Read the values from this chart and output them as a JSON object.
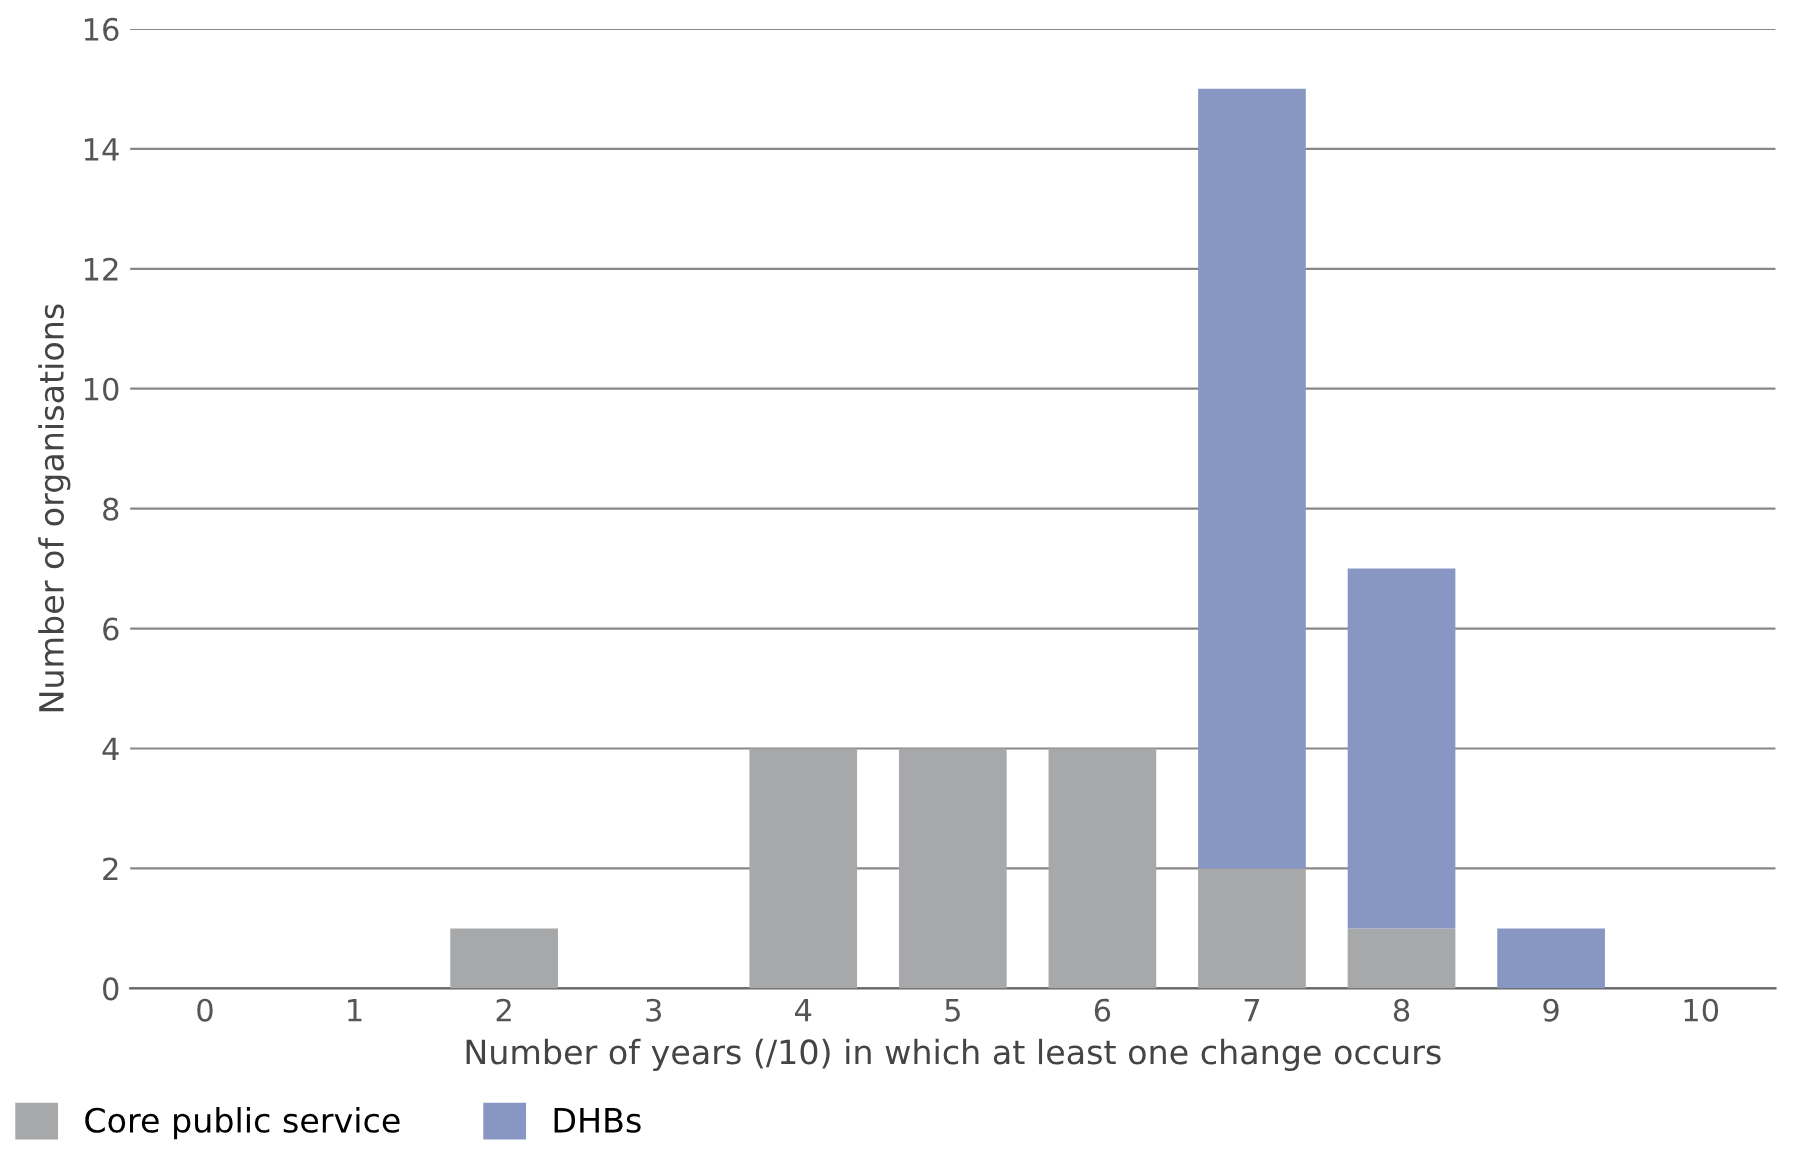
{
  "chart_data": {
    "type": "bar",
    "stacked": true,
    "xlabel": "Number of years (/10) in which at least one change occurs",
    "ylabel": "Number of organisations",
    "categories": [
      "0",
      "1",
      "2",
      "3",
      "4",
      "5",
      "6",
      "7",
      "8",
      "9",
      "10"
    ],
    "series": [
      {
        "name": "Core public service",
        "color": "#a7a8aa",
        "values": [
          0,
          0,
          1,
          0,
          4,
          4,
          4,
          2,
          1,
          0,
          0
        ]
      },
      {
        "name": "DHBs",
        "color": "#8896c4",
        "values": [
          0,
          0,
          0,
          0,
          0,
          0,
          0,
          13,
          6,
          1,
          0
        ]
      }
    ],
    "ylim": [
      0,
      16
    ],
    "yticks": [
      0,
      2,
      4,
      6,
      8,
      10,
      12,
      14,
      16
    ],
    "grid": "y",
    "legend": "bottom left"
  }
}
